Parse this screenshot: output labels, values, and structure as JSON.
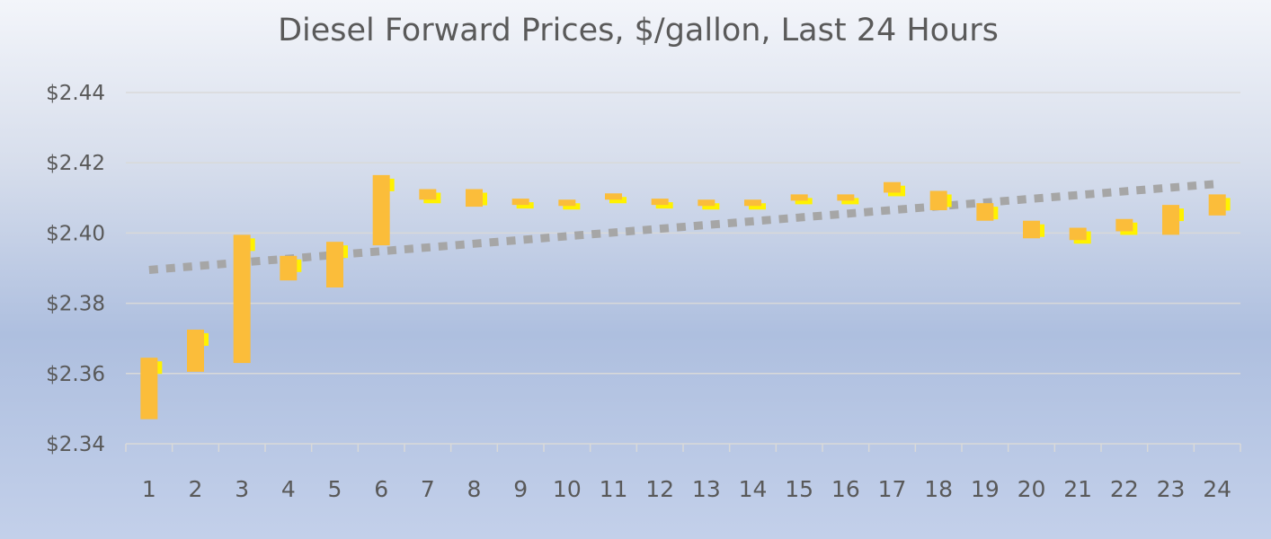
{
  "chart_data": {
    "type": "stock",
    "title": "Diesel Forward Prices, $/gallon, Last 24 Hours",
    "xlabel": "",
    "ylabel": "",
    "categories": [
      "1",
      "2",
      "3",
      "4",
      "5",
      "6",
      "7",
      "8",
      "9",
      "10",
      "11",
      "12",
      "13",
      "14",
      "15",
      "16",
      "17",
      "18",
      "19",
      "20",
      "21",
      "22",
      "23",
      "24"
    ],
    "ylim": [
      2.34,
      2.44
    ],
    "ytick_values": [
      2.34,
      2.36,
      2.38,
      2.4,
      2.42,
      2.44
    ],
    "ytick_labels": [
      "$2.34",
      "$2.36",
      "$2.38",
      "$2.40",
      "$2.42",
      "$2.44"
    ],
    "grid": true,
    "legend": "none",
    "series": [
      {
        "open": 2.347,
        "close": 2.3645
      },
      {
        "open": 2.3725,
        "close": 2.3605
      },
      {
        "open": 2.363,
        "close": 2.3995
      },
      {
        "open": 2.3935,
        "close": 2.3865
      },
      {
        "open": 2.3845,
        "close": 2.3975
      },
      {
        "open": 2.3965,
        "close": 2.4165
      },
      {
        "open": 2.4125,
        "close": 2.4095
      },
      {
        "open": 2.4125,
        "close": 2.4075
      },
      {
        "open": 2.4095,
        "close": 2.408
      },
      {
        "open": 2.4095,
        "close": 2.4095
      },
      {
        "open": 2.4105,
        "close": 2.4095
      },
      {
        "open": 2.4085,
        "close": 2.408
      },
      {
        "open": 2.4085,
        "close": 2.4095
      },
      {
        "open": 2.4095,
        "close": 2.4095
      },
      {
        "open": 2.4105,
        "close": 2.411
      },
      {
        "open": 2.4095,
        "close": 2.411
      },
      {
        "open": 2.4115,
        "close": 2.4145
      },
      {
        "open": 2.412,
        "close": 2.4065
      },
      {
        "open": 2.4085,
        "close": 2.4035
      },
      {
        "open": 2.4035,
        "close": 2.3985
      },
      {
        "open": 2.398,
        "close": 2.4015
      },
      {
        "open": 2.404,
        "close": 2.4005
      },
      {
        "open": 2.3995,
        "close": 2.408
      },
      {
        "open": 2.405,
        "close": 2.411
      }
    ],
    "trendline": {
      "start": 2.3895,
      "end": 2.414,
      "style": "dotted"
    },
    "colors": {
      "candle": "#fbbd3a",
      "candle_highlight": "#fff200",
      "trendline": "#a6a6a6",
      "gridline": "#d9d9d9",
      "axis": "#d9d9d9"
    }
  }
}
